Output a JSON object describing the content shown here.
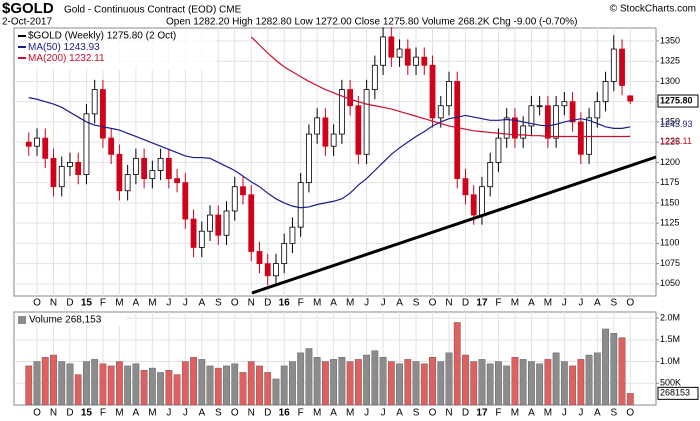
{
  "header": {
    "symbol": "$GOLD",
    "name": "Gold - Continuous Contract (EOD) CME",
    "date": "2-Oct-2017",
    "quote": "Open 1282.20 High 1282.80 Low 1272.00 Close 1275.80 Volume 268.2K Chg -9.00 (-0.70%)",
    "credit": "© StockCharts.com"
  },
  "chart_data": [
    {
      "type": "candlestick",
      "title": "$GOLD (Weekly) 1275.80 (2 Oct)",
      "last_label": "1275.80",
      "categories": [
        null,
        "O",
        null,
        "N",
        null,
        "D",
        null,
        "15",
        null,
        "F",
        null,
        "M",
        null,
        "A",
        null,
        "M",
        null,
        "J",
        null,
        "J",
        null,
        "A",
        null,
        "S",
        null,
        "O",
        null,
        "N",
        null,
        "D",
        null,
        "16",
        null,
        "F",
        null,
        "M",
        null,
        "A",
        null,
        "M",
        null,
        "J",
        null,
        "J",
        null,
        "A",
        null,
        "S",
        null,
        "O",
        null,
        "N",
        null,
        "D",
        null,
        "17",
        null,
        "F",
        null,
        "M",
        null,
        "A",
        null,
        "M",
        null,
        "J",
        null,
        "J",
        null,
        "A",
        null,
        "S",
        null,
        "O"
      ],
      "candles": [
        [
          1225,
          1237,
          1208,
          1220
        ],
        [
          1220,
          1242,
          1208,
          1230
        ],
        [
          1230,
          1242,
          1193,
          1205
        ],
        [
          1205,
          1217,
          1158,
          1170
        ],
        [
          1170,
          1207,
          1158,
          1195
        ],
        [
          1195,
          1212,
          1183,
          1200
        ],
        [
          1200,
          1212,
          1173,
          1185
        ],
        [
          1185,
          1272,
          1173,
          1260
        ],
        [
          1260,
          1302,
          1248,
          1290
        ],
        [
          1290,
          1302,
          1218,
          1230
        ],
        [
          1230,
          1242,
          1198,
          1210
        ],
        [
          1210,
          1222,
          1153,
          1165
        ],
        [
          1165,
          1197,
          1153,
          1185
        ],
        [
          1185,
          1217,
          1173,
          1205
        ],
        [
          1205,
          1217,
          1168,
          1180
        ],
        [
          1180,
          1202,
          1168,
          1190
        ],
        [
          1190,
          1217,
          1178,
          1205
        ],
        [
          1205,
          1217,
          1168,
          1180
        ],
        [
          1180,
          1192,
          1163,
          1175
        ],
        [
          1175,
          1187,
          1118,
          1130
        ],
        [
          1130,
          1142,
          1083,
          1095
        ],
        [
          1095,
          1127,
          1083,
          1115
        ],
        [
          1115,
          1147,
          1103,
          1135
        ],
        [
          1135,
          1147,
          1098,
          1110
        ],
        [
          1110,
          1152,
          1098,
          1140
        ],
        [
          1140,
          1182,
          1128,
          1170
        ],
        [
          1170,
          1182,
          1148,
          1160
        ],
        [
          1160,
          1172,
          1078,
          1090
        ],
        [
          1090,
          1102,
          1063,
          1075
        ],
        [
          1075,
          1087,
          1048,
          1060
        ],
        [
          1060,
          1087,
          1048,
          1075
        ],
        [
          1075,
          1112,
          1063,
          1100
        ],
        [
          1100,
          1132,
          1088,
          1120
        ],
        [
          1120,
          1187,
          1108,
          1175
        ],
        [
          1175,
          1247,
          1163,
          1235
        ],
        [
          1235,
          1267,
          1223,
          1255
        ],
        [
          1255,
          1267,
          1208,
          1220
        ],
        [
          1220,
          1247,
          1208,
          1235
        ],
        [
          1235,
          1302,
          1223,
          1290
        ],
        [
          1290,
          1302,
          1258,
          1270
        ],
        [
          1270,
          1282,
          1198,
          1210
        ],
        [
          1210,
          1302,
          1198,
          1290
        ],
        [
          1290,
          1332,
          1278,
          1320
        ],
        [
          1320,
          1367,
          1308,
          1355
        ],
        [
          1355,
          1367,
          1318,
          1330
        ],
        [
          1330,
          1352,
          1318,
          1340
        ],
        [
          1340,
          1352,
          1308,
          1320
        ],
        [
          1320,
          1342,
          1308,
          1330
        ],
        [
          1330,
          1342,
          1308,
          1320
        ],
        [
          1320,
          1332,
          1243,
          1255
        ],
        [
          1255,
          1282,
          1243,
          1270
        ],
        [
          1270,
          1312,
          1258,
          1300
        ],
        [
          1300,
          1312,
          1168,
          1180
        ],
        [
          1180,
          1192,
          1148,
          1160
        ],
        [
          1160,
          1172,
          1123,
          1135
        ],
        [
          1135,
          1182,
          1123,
          1170
        ],
        [
          1170,
          1212,
          1158,
          1200
        ],
        [
          1200,
          1242,
          1188,
          1230
        ],
        [
          1230,
          1267,
          1218,
          1255
        ],
        [
          1255,
          1267,
          1218,
          1230
        ],
        [
          1230,
          1257,
          1218,
          1245
        ],
        [
          1245,
          1282,
          1233,
          1270
        ],
        [
          1270,
          1282,
          1258,
          1270
        ],
        [
          1270,
          1282,
          1218,
          1230
        ],
        [
          1230,
          1282,
          1218,
          1270
        ],
        [
          1270,
          1287,
          1258,
          1275
        ],
        [
          1275,
          1287,
          1238,
          1250
        ],
        [
          1250,
          1262,
          1198,
          1210
        ],
        [
          1210,
          1267,
          1198,
          1255
        ],
        [
          1255,
          1287,
          1243,
          1275
        ],
        [
          1275,
          1312,
          1263,
          1300
        ],
        [
          1300,
          1357,
          1288,
          1340
        ],
        [
          1340,
          1352,
          1283,
          1295
        ],
        [
          1282.2,
          1282.8,
          1272,
          1275.8
        ]
      ],
      "up_color": "#000000",
      "down_color": "#d0021b",
      "series": [
        {
          "name": "MA(50)",
          "color": "#1c1c8a",
          "values": [
            1280,
            1278,
            1275,
            1272,
            1268,
            1262,
            1256,
            1250,
            1246,
            1244,
            1242,
            1240,
            1236,
            1232,
            1228,
            1224,
            1220,
            1216,
            1212,
            1208,
            1206,
            1206,
            1205,
            1200,
            1195,
            1190,
            1183,
            1176,
            1170,
            1162,
            1155,
            1150,
            1146,
            1144,
            1145,
            1148,
            1150,
            1152,
            1155,
            1162,
            1172,
            1180,
            1190,
            1200,
            1210,
            1218,
            1225,
            1232,
            1238,
            1245,
            1250,
            1254,
            1256,
            1258,
            1256,
            1254,
            1252,
            1252,
            1253,
            1252,
            1250,
            1248,
            1246,
            1245,
            1247,
            1250,
            1252,
            1254,
            1252,
            1248,
            1244,
            1242,
            1242,
            1243.93
          ]
        },
        {
          "name": "MA(200)",
          "color": "#c8102e",
          "values": [
            null,
            null,
            null,
            null,
            null,
            null,
            null,
            null,
            null,
            null,
            null,
            null,
            null,
            null,
            null,
            null,
            null,
            null,
            null,
            null,
            null,
            null,
            null,
            null,
            null,
            null,
            null,
            1355,
            1345,
            1335,
            1326,
            1318,
            1312,
            1306,
            1300,
            1295,
            1290,
            1286,
            1282,
            1278,
            1275,
            1272,
            1270,
            1268,
            1266,
            1263,
            1260,
            1257,
            1254,
            1251,
            1248,
            1245,
            1243,
            1241,
            1239,
            1238,
            1237,
            1236,
            1235,
            1234,
            1234,
            1233,
            1233,
            1232,
            1232,
            1232,
            1232,
            1232,
            1232,
            1232,
            1232,
            1232,
            1232,
            1232.11
          ]
        }
      ],
      "ylim": [
        1035,
        1366
      ],
      "yticks": [
        1050,
        1075,
        1100,
        1125,
        1150,
        1175,
        1200,
        1225,
        1250,
        1275,
        1300,
        1325,
        1350
      ],
      "grid": true
    },
    {
      "type": "bar",
      "title": "Volume 268,153",
      "categories": [
        null,
        "O",
        null,
        "N",
        null,
        "D",
        null,
        "15",
        null,
        "F",
        null,
        "M",
        null,
        "A",
        null,
        "M",
        null,
        "J",
        null,
        "J",
        null,
        "A",
        null,
        "S",
        null,
        "O",
        null,
        "N",
        null,
        "D",
        null,
        "16",
        null,
        "F",
        null,
        "M",
        null,
        "A",
        null,
        "M",
        null,
        "J",
        null,
        "J",
        null,
        "A",
        null,
        "S",
        null,
        "O",
        null,
        "N",
        null,
        "D",
        null,
        "17",
        null,
        "F",
        null,
        "M",
        null,
        "A",
        null,
        "M",
        null,
        "J",
        null,
        "J",
        null,
        "A",
        null,
        "S",
        null,
        "O"
      ],
      "values": [
        900000,
        1000000,
        1100000,
        1150000,
        1000000,
        950000,
        700000,
        1000000,
        1050000,
        950000,
        900000,
        1000000,
        900000,
        950000,
        800000,
        850000,
        750000,
        800000,
        700000,
        1000000,
        1100000,
        1050000,
        900000,
        850000,
        900000,
        950000,
        750000,
        1000000,
        900000,
        750000,
        600000,
        900000,
        1000000,
        1200000,
        1300000,
        1100000,
        1000000,
        1050000,
        1100000,
        1000000,
        1050000,
        1150000,
        1250000,
        1100000,
        1000000,
        950000,
        1050000,
        1000000,
        950000,
        1100000,
        1000000,
        1200000,
        1900000,
        1150000,
        1000000,
        1050000,
        950000,
        1000000,
        900000,
        1100000,
        1050000,
        1000000,
        950000,
        1050000,
        1200000,
        1000000,
        900000,
        1050000,
        1150000,
        1200000,
        1750000,
        1650000,
        1550000,
        268153
      ],
      "up_color": "#8c8c8c",
      "down_color": "#e06060",
      "ylim": [
        0,
        2140000
      ],
      "yticks": [
        {
          "value": 500000,
          "label": "500K"
        },
        {
          "value": 1000000,
          "label": "1.0M"
        },
        {
          "value": 1500000,
          "label": "1.5M"
        },
        {
          "value": 2000000,
          "label": "2.0M"
        }
      ],
      "grid": true
    }
  ]
}
